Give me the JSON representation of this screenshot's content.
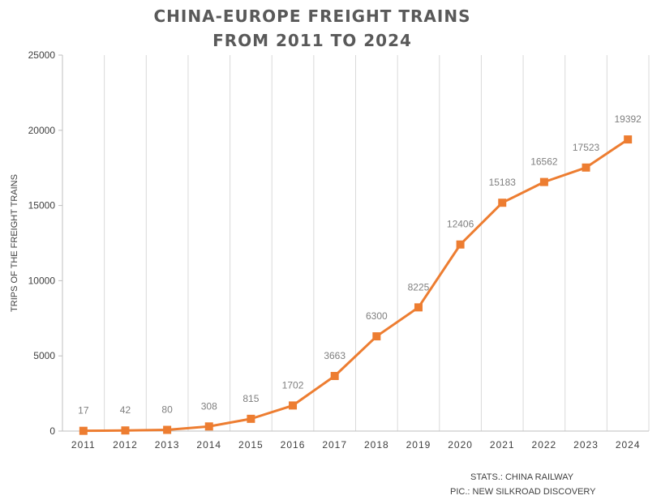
{
  "title_lines": [
    "CHINA-EUROPE FREIGHT TRAINS",
    "FROM 2011 TO 2024"
  ],
  "source_lines": [
    "STATS.: CHINA RAILWAY",
    "PIC.: NEW SILKROAD DISCOVERY"
  ],
  "colors": {
    "series": "#ED7D31",
    "grid": "#d9d9d9",
    "axis": "#bfbfbf",
    "tick_text": "#404040",
    "data_label": "#7f7f7f",
    "title": "#595959"
  },
  "chart_data": {
    "type": "line",
    "title": "CHINA-EUROPE FREIGHT TRAINS FROM 2011 TO 2024",
    "xlabel": "",
    "ylabel": "TRIPS OF THE FREIGHT TRAINS",
    "categories": [
      "2011",
      "2012",
      "2013",
      "2014",
      "2015",
      "2016",
      "2017",
      "2018",
      "2019",
      "2020",
      "2021",
      "2022",
      "2023",
      "2024"
    ],
    "series": [
      {
        "values": [
          17,
          42,
          80,
          308,
          815,
          1702,
          3663,
          6300,
          8225,
          12406,
          15183,
          16562,
          17523,
          19392
        ],
        "marker": "square"
      }
    ],
    "ylim": [
      0,
      25000
    ],
    "yticks": [
      0,
      5000,
      10000,
      15000,
      20000,
      25000
    ],
    "grid": "vertical",
    "legend": "none"
  }
}
